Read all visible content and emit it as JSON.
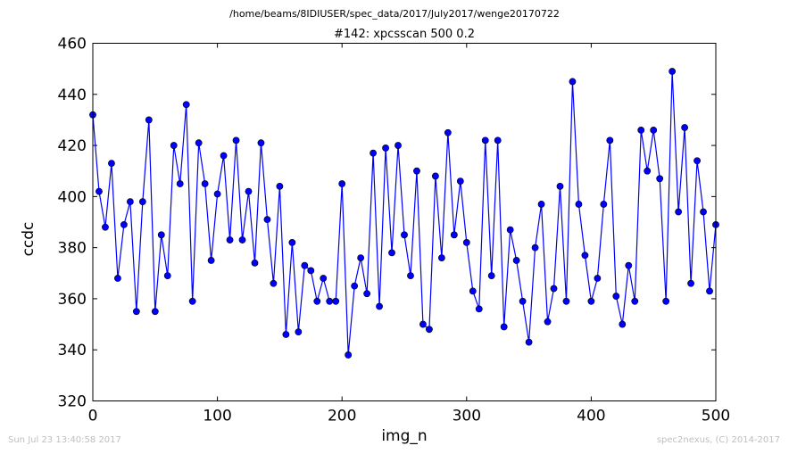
{
  "header": {
    "path": "/home/beams/8IDIUSER/spec_data/2017/July2017/wenge20170722"
  },
  "footer": {
    "timestamp": "Sun Jul 23 13:40:58 2017",
    "credit": "spec2nexus, (C) 2014-2017"
  },
  "chart_data": {
    "type": "line",
    "title": "#142: xpcsscan 500 0.2",
    "xlabel": "img_n",
    "ylabel": "ccdc",
    "xlim": [
      0,
      500
    ],
    "ylim": [
      320,
      460
    ],
    "xticks": [
      0,
      100,
      200,
      300,
      400,
      500
    ],
    "yticks": [
      320,
      340,
      360,
      380,
      400,
      420,
      440,
      460
    ],
    "grid": false,
    "marker": "circle",
    "series": [
      {
        "color": "#0000ff",
        "x": [
          0,
          5,
          10,
          15,
          20,
          25,
          30,
          35,
          40,
          45,
          50,
          55,
          60,
          65,
          70,
          75,
          80,
          85,
          90,
          95,
          100,
          105,
          110,
          115,
          120,
          125,
          130,
          135,
          140,
          145,
          150,
          155,
          160,
          165,
          170,
          175,
          180,
          185,
          190,
          195,
          200,
          205,
          210,
          215,
          220,
          225,
          230,
          235,
          240,
          245,
          250,
          255,
          260,
          265,
          270,
          275,
          280,
          285,
          290,
          295,
          300,
          305,
          310,
          315,
          320,
          325,
          330,
          335,
          340,
          345,
          350,
          355,
          360,
          365,
          370,
          375,
          380,
          385,
          390,
          395,
          400,
          405,
          410,
          415,
          420,
          425,
          430,
          435,
          440,
          445,
          450,
          455,
          460,
          465,
          470,
          475,
          480,
          485,
          490,
          495,
          500
        ],
        "y": [
          432,
          402,
          388,
          413,
          368,
          389,
          398,
          355,
          398,
          430,
          355,
          385,
          369,
          420,
          405,
          436,
          359,
          421,
          405,
          375,
          401,
          416,
          383,
          422,
          383,
          402,
          374,
          421,
          391,
          366,
          404,
          346,
          382,
          347,
          373,
          371,
          359,
          368,
          359,
          359,
          405,
          338,
          365,
          376,
          362,
          417,
          357,
          419,
          378,
          420,
          385,
          369,
          410,
          350,
          348,
          408,
          376,
          425,
          385,
          406,
          382,
          363,
          356,
          422,
          369,
          422,
          349,
          387,
          375,
          359,
          343,
          380,
          397,
          351,
          364,
          404,
          359,
          445,
          397,
          377,
          359,
          368,
          397,
          422,
          361,
          350,
          373,
          359,
          426,
          410,
          426,
          407,
          359,
          449,
          394,
          427,
          366,
          414,
          394,
          363,
          389
        ]
      }
    ]
  }
}
